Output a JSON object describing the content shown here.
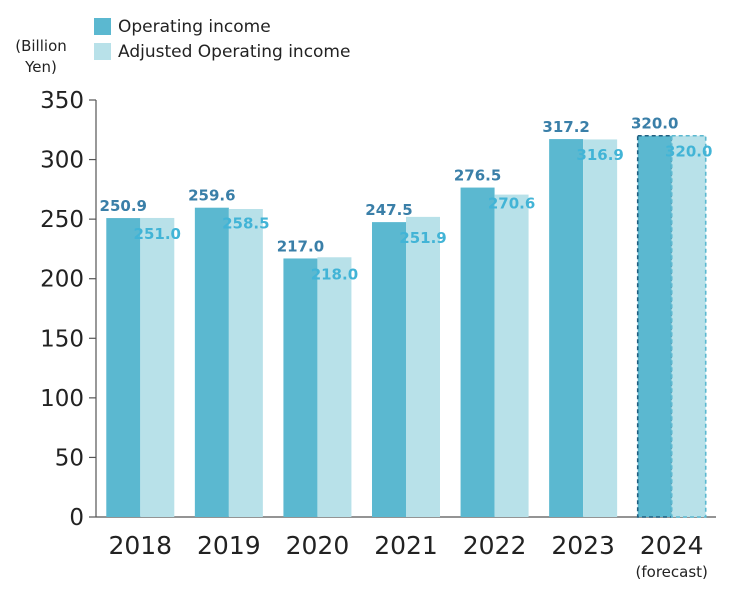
{
  "unit_label": {
    "line1": "(Billion",
    "line2": "Yen)"
  },
  "legend": [
    {
      "name": "Operating income",
      "color": "#5bb8d0"
    },
    {
      "name": "Adjusted Operating income",
      "color": "#b8e1e9"
    }
  ],
  "label_colors": {
    "operating": "#3a7fa8",
    "adjusted": "#42b4d6"
  },
  "forecast_border_colors": {
    "operating": "#1f5f80",
    "adjusted": "#5bb8d0"
  },
  "chart_data": {
    "type": "bar",
    "title": "",
    "xlabel": "",
    "ylabel": "(Billion Yen)",
    "ylim": [
      0,
      350
    ],
    "yticks": [
      0,
      50,
      100,
      150,
      200,
      250,
      300,
      350
    ],
    "categories": [
      "2018",
      "2019",
      "2020",
      "2021",
      "2022",
      "2023",
      "2024"
    ],
    "category_sublabels": [
      "",
      "",
      "",
      "",
      "",
      "",
      "(forecast)"
    ],
    "forecast_index": 6,
    "series": [
      {
        "name": "Operating income",
        "values": [
          250.9,
          259.6,
          217.0,
          247.5,
          276.5,
          317.2,
          320.0
        ],
        "labels": [
          "250.9",
          "259.6",
          "217.0",
          "247.5",
          "276.5",
          "317.2",
          "320.0"
        ]
      },
      {
        "name": "Adjusted Operating income",
        "values": [
          251.0,
          258.5,
          218.0,
          251.9,
          270.6,
          316.9,
          320.0
        ],
        "labels": [
          "251.0",
          "258.5",
          "218.0",
          "251.9",
          "270.6",
          "316.9",
          "320.0"
        ]
      }
    ]
  }
}
